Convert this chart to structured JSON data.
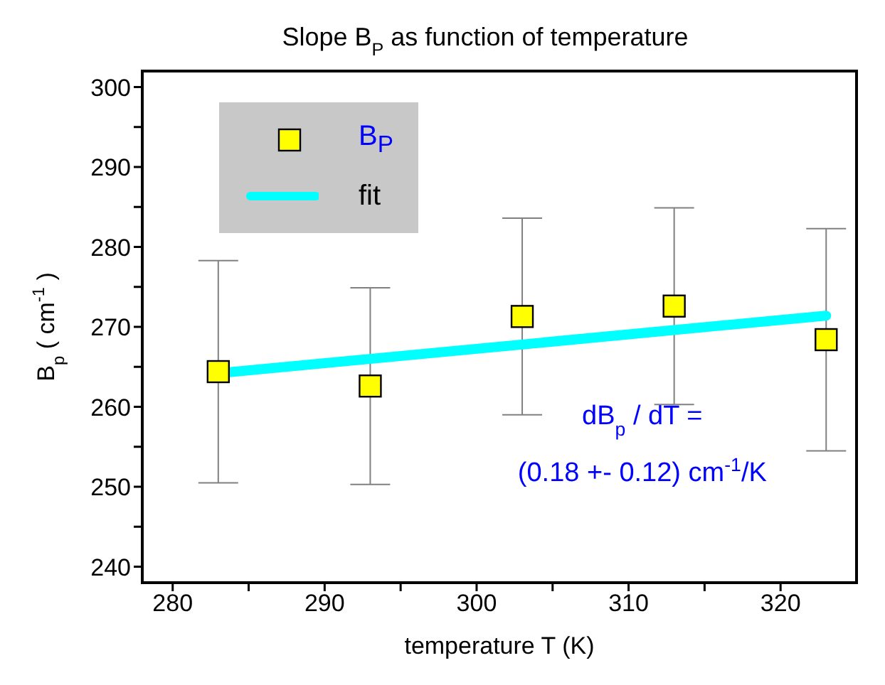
{
  "chart_data": {
    "type": "scatter",
    "title": "Slope B$_{P}$ as function of temperature",
    "xlabel": "temperature T (K)",
    "ylabel": "B$_{p}$ ( cm$^{-1}$ )",
    "annotations": [
      "dB$_{p}$ / dT =",
      "(0.18 +- 0.12) cm$^{-1}$/K"
    ],
    "x": [
      283,
      293,
      303,
      313,
      323
    ],
    "series": [
      {
        "name": "B$_{P}$",
        "color": "#ffff00",
        "marker": "square",
        "values": [
          264.4,
          262.6,
          271.3,
          272.6,
          268.4
        ],
        "errors": [
          13.9,
          12.3,
          12.3,
          12.3,
          13.9
        ]
      },
      {
        "name": "fit",
        "type": "line",
        "color": "#00ffff",
        "marker": "none",
        "x": [
          283,
          323
        ],
        "values": [
          264.2,
          271.4
        ]
      }
    ],
    "xlim": [
      278,
      325
    ],
    "xticks": [
      280,
      {
        "value": 285,
        "label": null
      },
      290,
      {
        "value": 295,
        "label": null
      },
      300,
      {
        "value": 305,
        "label": null
      },
      310,
      {
        "value": 315,
        "label": null
      },
      320
    ],
    "ylim": [
      238,
      302
    ],
    "yticks": [
      240,
      {
        "value": 245,
        "label": null
      },
      250,
      {
        "value": 255,
        "label": null
      },
      260,
      {
        "value": 265,
        "label": null
      },
      270,
      {
        "value": 275,
        "label": null
      },
      280,
      {
        "value": 285,
        "label": null
      },
      290,
      {
        "value": 295,
        "label": null
      },
      300
    ],
    "grid": false,
    "legend": "top left"
  }
}
